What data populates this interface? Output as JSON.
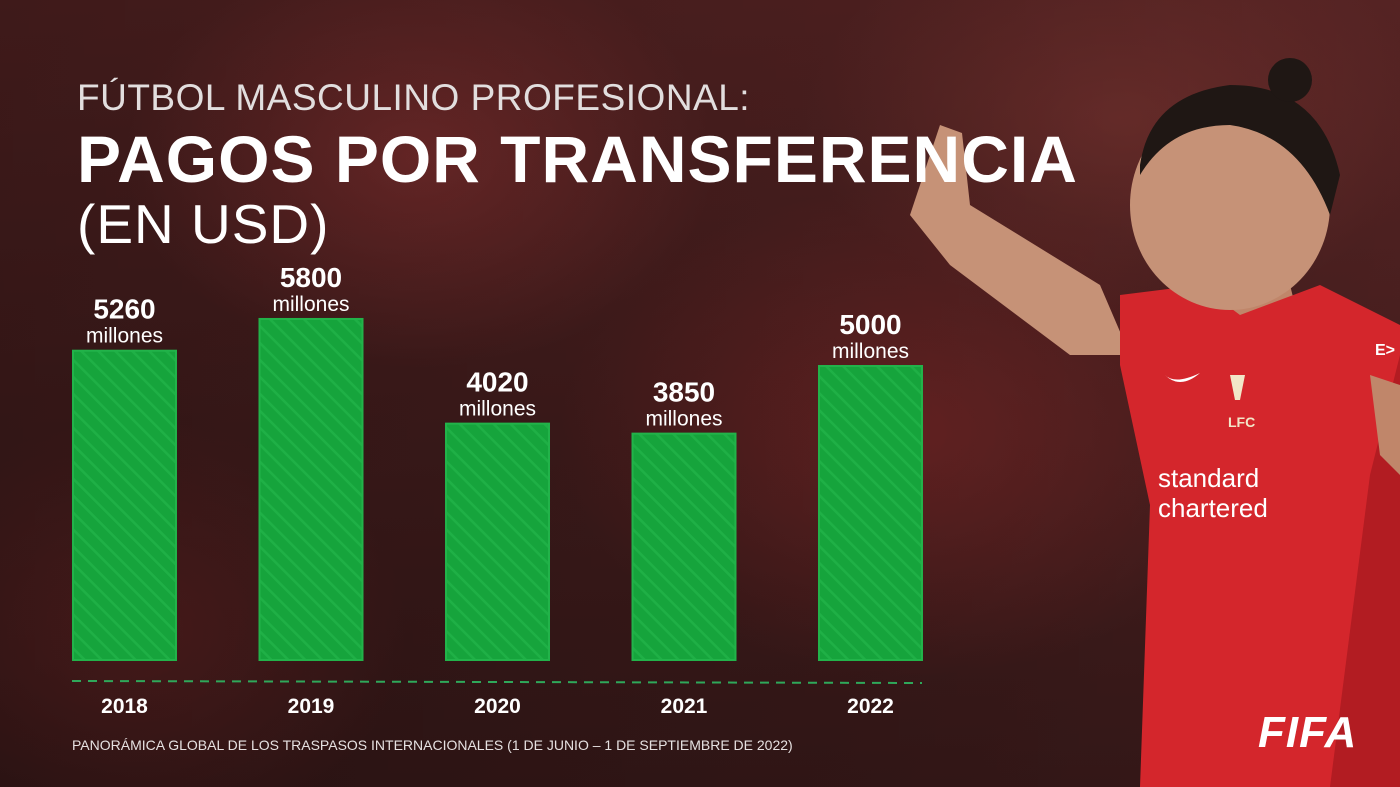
{
  "header": {
    "supertitle": "FÚTBOL MASCULINO PROFESIONAL:",
    "title": "PAGOS POR TRANSFERENCIA",
    "subtitle": "(EN USD)"
  },
  "chart_data": {
    "type": "bar",
    "categories": [
      "2018",
      "2019",
      "2020",
      "2021",
      "2022"
    ],
    "values": [
      5260,
      5800,
      4020,
      3850,
      5000
    ],
    "value_labels": [
      "5260",
      "5800",
      "4020",
      "3850",
      "5000"
    ],
    "unit_label": "millones",
    "title": "PAGOS POR TRANSFERENCIA",
    "xlabel": "",
    "ylabel": "",
    "grid": false,
    "bar_color": "#16a43c"
  },
  "footer": {
    "source": "PANORÁMICA GLOBAL DE LOS TRASPASOS INTERNACIONALES (1 DE JUNIO – 1 DE SEPTIEMBRE DE 2022)",
    "logo": "FIFA"
  },
  "photo": {
    "jersey_sponsor_line1": "standard",
    "jersey_sponsor_line2": "chartered",
    "crest_text": "LFC",
    "sleeve_text": "E>"
  },
  "colors": {
    "bar": "#16a43c",
    "bar_edge": "#22b34a",
    "baseline": "#2fa85a",
    "jersey": "#d4262c"
  }
}
